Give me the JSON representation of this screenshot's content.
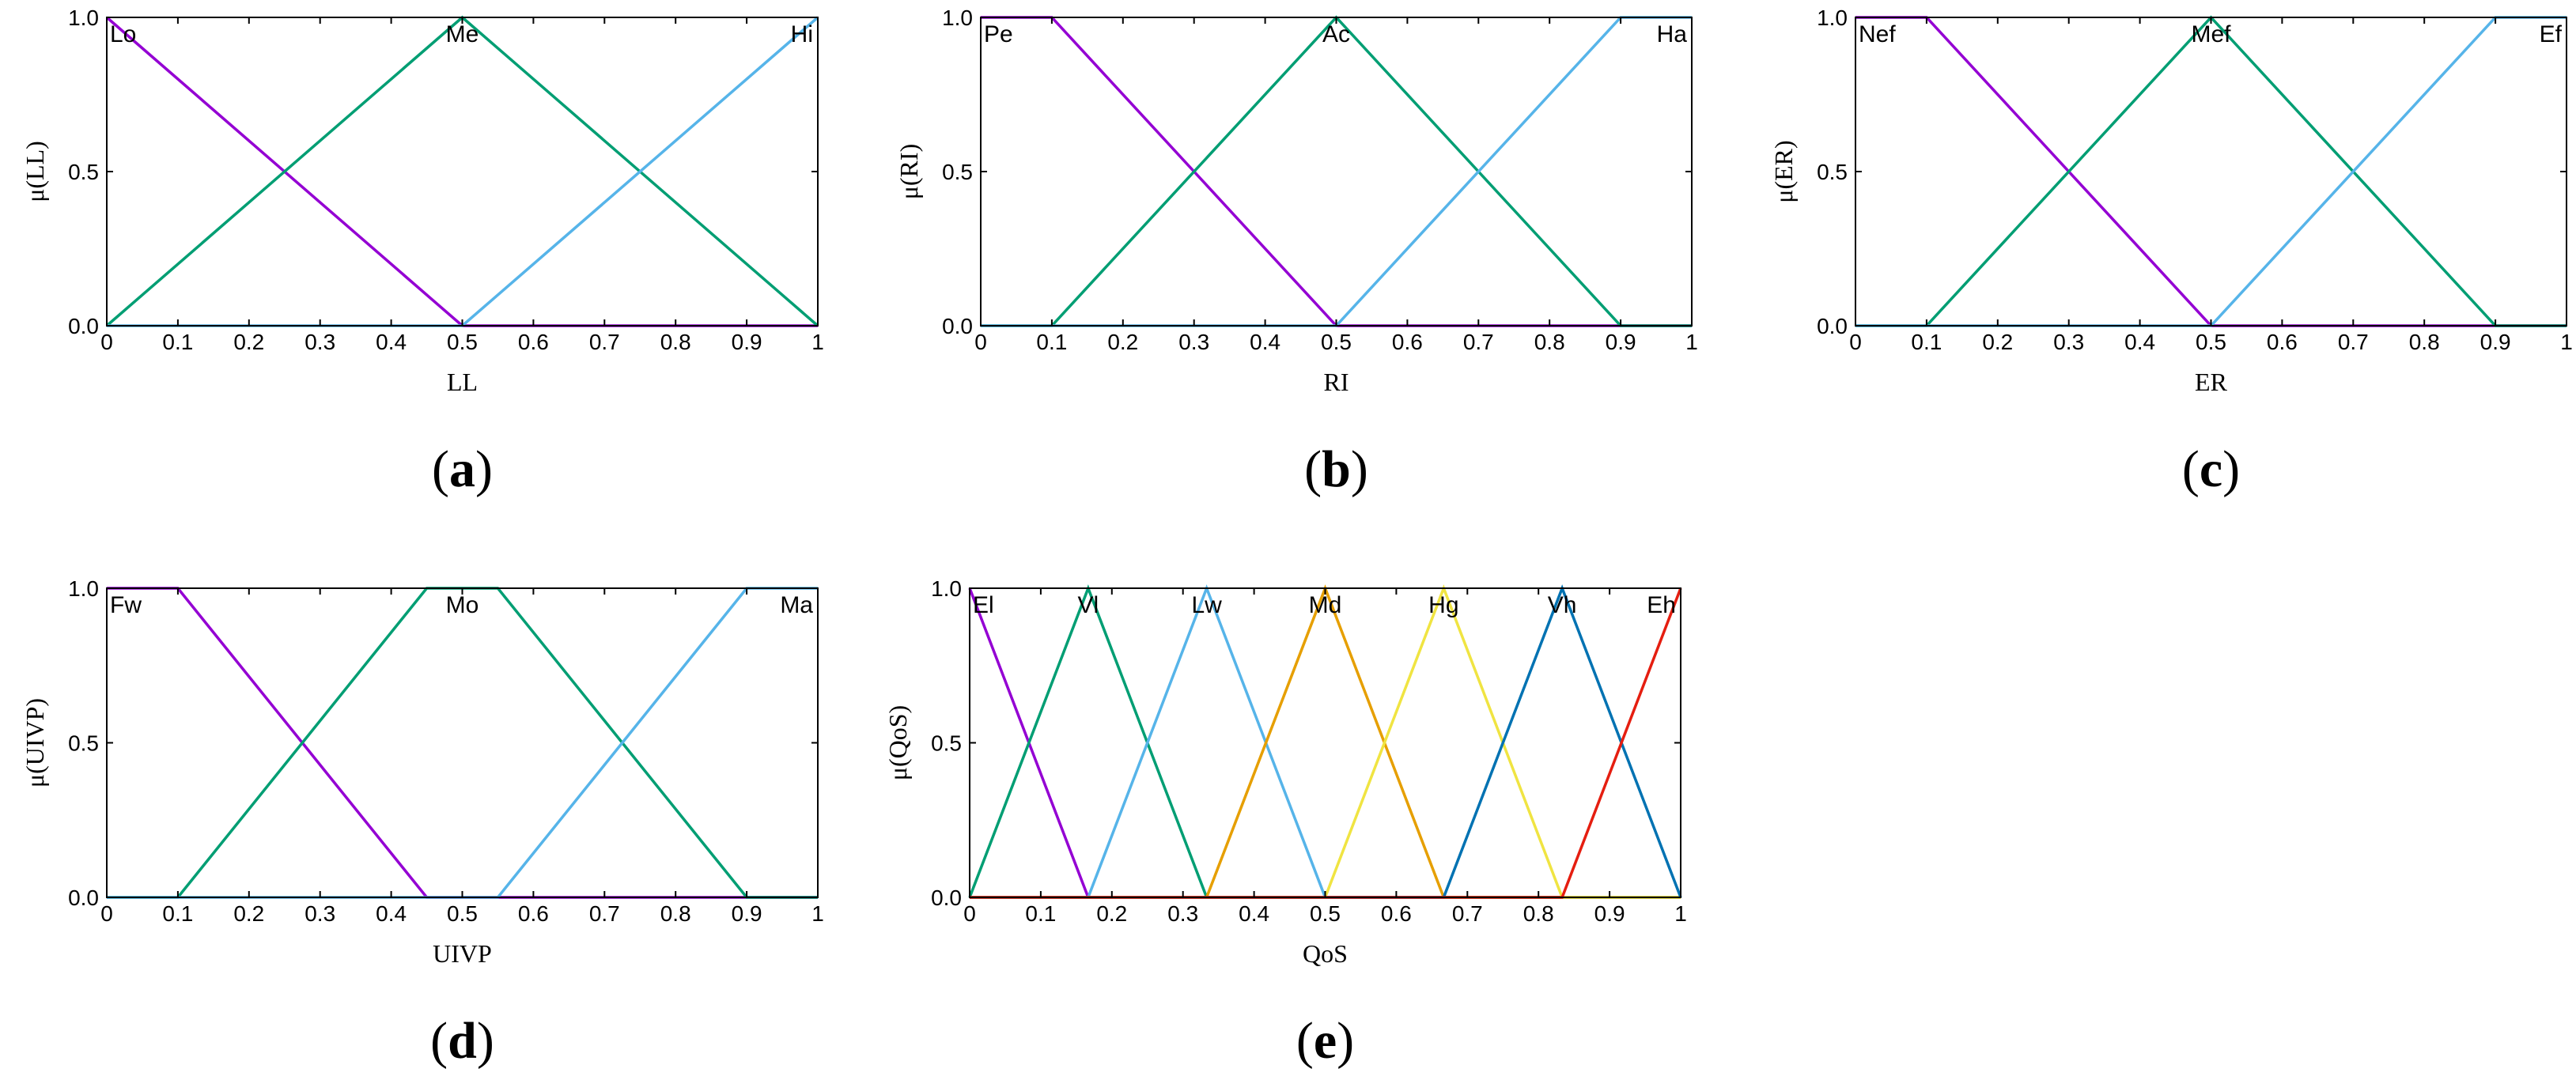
{
  "chart_data": [
    {
      "type": "line",
      "panel_label": "(a)",
      "xlabel": "LL",
      "ylabel": "μ(LL)",
      "xlim": [
        0,
        1
      ],
      "ylim": [
        0,
        1
      ],
      "xticks": [
        "0",
        "0.1",
        "0.2",
        "0.3",
        "0.4",
        "0.5",
        "0.6",
        "0.7",
        "0.8",
        "0.9",
        "1"
      ],
      "yticks": [
        "0.0",
        "0.5",
        "1.0"
      ],
      "grid": false,
      "series": [
        {
          "name": "Lo",
          "color": "#9400d3",
          "x": [
            0,
            0.5,
            1
          ],
          "y": [
            1,
            0,
            0
          ]
        },
        {
          "name": "Me",
          "color": "#009e73",
          "x": [
            0,
            0.5,
            1
          ],
          "y": [
            0,
            1,
            0
          ]
        },
        {
          "name": "Hi",
          "color": "#56b4e9",
          "x": [
            0,
            0.5,
            1
          ],
          "y": [
            0,
            0,
            1
          ]
        }
      ]
    },
    {
      "type": "line",
      "panel_label": "(b)",
      "xlabel": "RI",
      "ylabel": "μ(RI)",
      "xlim": [
        0,
        1
      ],
      "ylim": [
        0,
        1
      ],
      "xticks": [
        "0",
        "0.1",
        "0.2",
        "0.3",
        "0.4",
        "0.5",
        "0.6",
        "0.7",
        "0.8",
        "0.9",
        "1"
      ],
      "yticks": [
        "0.0",
        "0.5",
        "1.0"
      ],
      "grid": false,
      "series": [
        {
          "name": "Pe",
          "color": "#9400d3",
          "x": [
            0,
            0.1,
            0.5,
            1
          ],
          "y": [
            1,
            1,
            0,
            0
          ]
        },
        {
          "name": "Ac",
          "color": "#009e73",
          "x": [
            0,
            0.1,
            0.5,
            0.9,
            1
          ],
          "y": [
            0,
            0,
            1,
            0,
            0
          ]
        },
        {
          "name": "Ha",
          "color": "#56b4e9",
          "x": [
            0,
            0.5,
            0.9,
            1
          ],
          "y": [
            0,
            0,
            1,
            1
          ]
        }
      ]
    },
    {
      "type": "line",
      "panel_label": "(c)",
      "xlabel": "ER",
      "ylabel": "μ(ER)",
      "xlim": [
        0,
        1
      ],
      "ylim": [
        0,
        1
      ],
      "xticks": [
        "0",
        "0.1",
        "0.2",
        "0.3",
        "0.4",
        "0.5",
        "0.6",
        "0.7",
        "0.8",
        "0.9",
        "1"
      ],
      "yticks": [
        "0.0",
        "0.5",
        "1.0"
      ],
      "grid": false,
      "series": [
        {
          "name": "Nef",
          "color": "#9400d3",
          "x": [
            0,
            0.1,
            0.5,
            1
          ],
          "y": [
            1,
            1,
            0,
            0
          ]
        },
        {
          "name": "Mef",
          "color": "#009e73",
          "x": [
            0,
            0.1,
            0.5,
            0.9,
            1
          ],
          "y": [
            0,
            0,
            1,
            0,
            0
          ]
        },
        {
          "name": "Ef",
          "color": "#56b4e9",
          "x": [
            0,
            0.5,
            0.9,
            1
          ],
          "y": [
            0,
            0,
            1,
            1
          ]
        }
      ]
    },
    {
      "type": "line",
      "panel_label": "(d)",
      "xlabel": "UIVP",
      "ylabel": "μ(UIVP)",
      "xlim": [
        0,
        1
      ],
      "ylim": [
        0,
        1
      ],
      "xticks": [
        "0",
        "0.1",
        "0.2",
        "0.3",
        "0.4",
        "0.5",
        "0.6",
        "0.7",
        "0.8",
        "0.9",
        "1"
      ],
      "yticks": [
        "0.0",
        "0.5",
        "1.0"
      ],
      "grid": false,
      "series": [
        {
          "name": "Fw",
          "color": "#9400d3",
          "x": [
            0,
            0.1,
            0.45,
            1
          ],
          "y": [
            1,
            1,
            0,
            0
          ]
        },
        {
          "name": "Mo",
          "color": "#009e73",
          "x": [
            0,
            0.1,
            0.45,
            0.55,
            0.9,
            1
          ],
          "y": [
            0,
            0,
            1,
            1,
            0,
            0
          ]
        },
        {
          "name": "Ma",
          "color": "#56b4e9",
          "x": [
            0,
            0.55,
            0.9,
            1
          ],
          "y": [
            0,
            0,
            1,
            1
          ]
        }
      ]
    },
    {
      "type": "line",
      "panel_label": "(e)",
      "xlabel": "QoS",
      "ylabel": "μ(QoS)",
      "xlim": [
        0,
        1
      ],
      "ylim": [
        0,
        1
      ],
      "xticks": [
        "0",
        "0.1",
        "0.2",
        "0.3",
        "0.4",
        "0.5",
        "0.6",
        "0.7",
        "0.8",
        "0.9",
        "1"
      ],
      "yticks": [
        "0.0",
        "0.5",
        "1.0"
      ],
      "grid": false,
      "series": [
        {
          "name": "El",
          "color": "#9400d3",
          "x": [
            0,
            0.1667,
            1
          ],
          "y": [
            1,
            0,
            0
          ]
        },
        {
          "name": "Vl",
          "color": "#009e73",
          "x": [
            0,
            0.1667,
            0.3333,
            1
          ],
          "y": [
            0,
            1,
            0,
            0
          ]
        },
        {
          "name": "Lw",
          "color": "#56b4e9",
          "x": [
            0,
            0.1667,
            0.3333,
            0.5,
            1
          ],
          "y": [
            0,
            0,
            1,
            0,
            0
          ]
        },
        {
          "name": "Md",
          "color": "#e69f00",
          "x": [
            0,
            0.3333,
            0.5,
            0.6667,
            1
          ],
          "y": [
            0,
            0,
            1,
            0,
            0
          ]
        },
        {
          "name": "Hg",
          "color": "#f0e442",
          "x": [
            0,
            0.5,
            0.6667,
            0.8333,
            1
          ],
          "y": [
            0,
            0,
            1,
            0,
            0
          ]
        },
        {
          "name": "Vh",
          "color": "#0072b2",
          "x": [
            0,
            0.6667,
            0.8333,
            1
          ],
          "y": [
            0,
            0,
            1,
            0
          ]
        },
        {
          "name": "Eh",
          "color": "#e51e10",
          "x": [
            0,
            0.8333,
            1
          ],
          "y": [
            0,
            0,
            1
          ]
        }
      ]
    }
  ]
}
